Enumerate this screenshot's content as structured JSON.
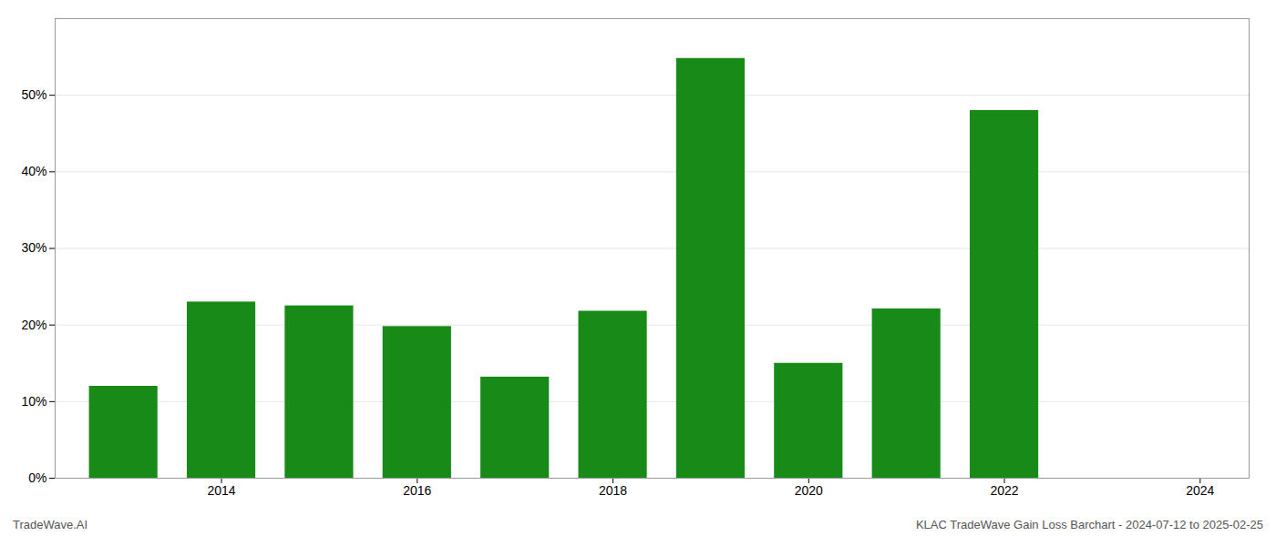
{
  "chart_data": {
    "type": "bar",
    "x": [
      2013,
      2014,
      2015,
      2016,
      2017,
      2018,
      2019,
      2020,
      2021,
      2022
    ],
    "values": [
      0.12,
      0.23,
      0.225,
      0.198,
      0.132,
      0.218,
      0.548,
      0.15,
      0.221,
      0.48
    ],
    "color": "#178a18",
    "xlim": [
      2012.3,
      2024.5
    ],
    "xticks": [
      2014,
      2016,
      2018,
      2020,
      2022,
      2024
    ],
    "ylim": [
      0,
      0.6
    ],
    "yticks": [
      {
        "value": 0.0,
        "label": "0%"
      },
      {
        "value": 0.1,
        "label": "10%"
      },
      {
        "value": 0.2,
        "label": "20%"
      },
      {
        "value": 0.3,
        "label": "30%"
      },
      {
        "value": 0.4,
        "label": "40%"
      },
      {
        "value": 0.5,
        "label": "50%"
      }
    ],
    "grid": true,
    "annotations": [
      "TradeWave.AI",
      "KLAC TradeWave Gain Loss Barchart - 2024-07-12 to 2025-02-25"
    ]
  }
}
